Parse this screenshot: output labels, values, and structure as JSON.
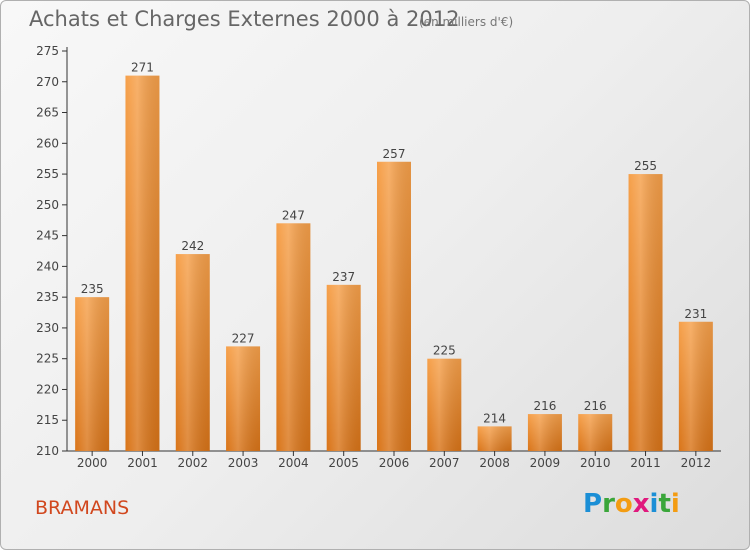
{
  "header": {
    "title": "Achats et Charges Externes 2000 à 2012",
    "subtitle": "(en milliers d'€)"
  },
  "footer": {
    "commune": "BRAMANS",
    "logo": {
      "letters": [
        "P",
        "r",
        "o",
        "x",
        "i",
        "t",
        "i"
      ],
      "colors": [
        "#1b8fd6",
        "#3aa63a",
        "#f39c12",
        "#e0197d",
        "#1b8fd6",
        "#3aa63a",
        "#f39c12"
      ]
    }
  },
  "chart_data": {
    "type": "bar",
    "categories": [
      "2000",
      "2001",
      "2002",
      "2003",
      "2004",
      "2005",
      "2006",
      "2007",
      "2008",
      "2009",
      "2010",
      "2011",
      "2012"
    ],
    "values": [
      235,
      271,
      242,
      227,
      247,
      237,
      257,
      225,
      214,
      216,
      216,
      255,
      231
    ],
    "title": "Achats et Charges Externes 2000 à 2012",
    "subtitle": "(en milliers d'€)",
    "ylim": [
      210,
      275
    ],
    "yticks": [
      210,
      215,
      220,
      225,
      230,
      235,
      240,
      245,
      250,
      255,
      260,
      265,
      270,
      275
    ],
    "grid": false,
    "bar_color": "#f0913a"
  }
}
